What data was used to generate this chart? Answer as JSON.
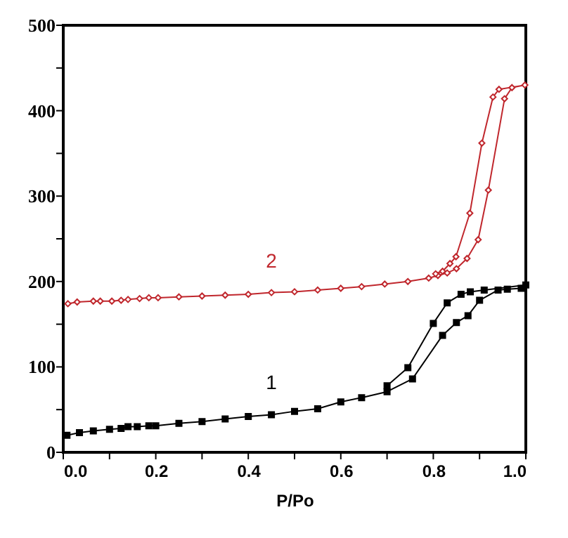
{
  "chart_data": {
    "type": "line",
    "xlabel": "P/Po",
    "xlim": [
      0,
      1
    ],
    "ylim": [
      0,
      500
    ],
    "xticks": [
      {
        "value": 0,
        "label": "0.0"
      },
      {
        "value": 0.1,
        "label": null
      },
      {
        "value": 0.2,
        "label": "0.2"
      },
      {
        "value": 0.3,
        "label": null
      },
      {
        "value": 0.4,
        "label": "0.4"
      },
      {
        "value": 0.5,
        "label": null
      },
      {
        "value": 0.6,
        "label": "0.6"
      },
      {
        "value": 0.7,
        "label": null
      },
      {
        "value": 0.8,
        "label": "0.8"
      },
      {
        "value": 0.9,
        "label": null
      },
      {
        "value": 1,
        "label": "1.0"
      }
    ],
    "yticks": [
      0,
      {
        "value": 50,
        "label": null
      },
      100,
      {
        "value": 150,
        "label": null
      },
      200,
      {
        "value": 250,
        "label": null
      },
      300,
      {
        "value": 350,
        "label": null
      },
      400,
      {
        "value": 450,
        "label": null
      },
      500
    ],
    "grid": false,
    "line_style": "solid",
    "series": [
      {
        "name": "1",
        "color": "#000000",
        "marker": "square",
        "x": [
          0.008,
          0.035,
          0.065,
          0.1,
          0.125,
          0.14,
          0.16,
          0.185,
          0.2,
          0.25,
          0.3,
          0.35,
          0.4,
          0.45,
          0.5,
          0.55,
          0.6,
          0.645,
          0.7,
          0.755,
          0.82,
          0.85,
          0.875,
          0.9,
          0.94,
          0.96,
          0.99,
          1.0,
          0.91,
          0.88,
          0.86,
          0.83,
          0.8,
          0.745,
          0.7
        ],
        "values": [
          20,
          23,
          25,
          27,
          28,
          30,
          30,
          31,
          31,
          34,
          36,
          39,
          42,
          44,
          48,
          51,
          59,
          64,
          71,
          86,
          137,
          152,
          160,
          178,
          190,
          191,
          192,
          196,
          190,
          188,
          185,
          175,
          151,
          99,
          78
        ]
      },
      {
        "name": "2",
        "color": "#c0272d",
        "marker": "diamond",
        "x": [
          0.01,
          0.03,
          0.065,
          0.08,
          0.105,
          0.125,
          0.14,
          0.165,
          0.185,
          0.205,
          0.25,
          0.3,
          0.35,
          0.4,
          0.45,
          0.5,
          0.55,
          0.6,
          0.645,
          0.695,
          0.745,
          0.79,
          0.81,
          0.83,
          0.85,
          0.873,
          0.897,
          0.919,
          0.954,
          0.97,
          0.998,
          0.942,
          0.929,
          0.905,
          0.879,
          0.849,
          0.836,
          0.82,
          0.805
        ],
        "values": [
          174,
          176,
          177,
          177,
          177,
          178,
          179,
          180,
          181,
          181,
          182,
          183,
          184,
          185,
          187,
          188,
          190,
          192,
          194,
          197,
          200,
          204,
          207,
          210,
          215,
          227,
          249,
          307,
          414,
          427,
          430,
          425,
          416,
          362,
          280,
          229,
          221,
          212,
          209
        ]
      }
    ]
  }
}
